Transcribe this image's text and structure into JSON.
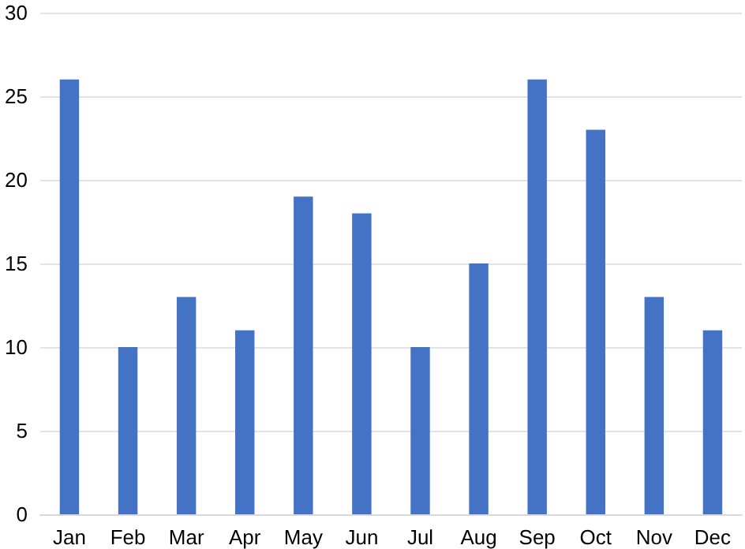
{
  "chart_data": {
    "type": "bar",
    "categories": [
      "Jan",
      "Feb",
      "Mar",
      "Apr",
      "May",
      "Jun",
      "Jul",
      "Aug",
      "Sep",
      "Oct",
      "Nov",
      "Dec"
    ],
    "values": [
      26,
      10,
      13,
      11,
      19,
      18,
      10,
      15,
      26,
      23,
      13,
      11
    ],
    "color": "#4472c4",
    "ylim": [
      0,
      30
    ],
    "yticks": [
      0,
      5,
      10,
      15,
      20,
      25,
      30
    ],
    "grid": "y"
  }
}
